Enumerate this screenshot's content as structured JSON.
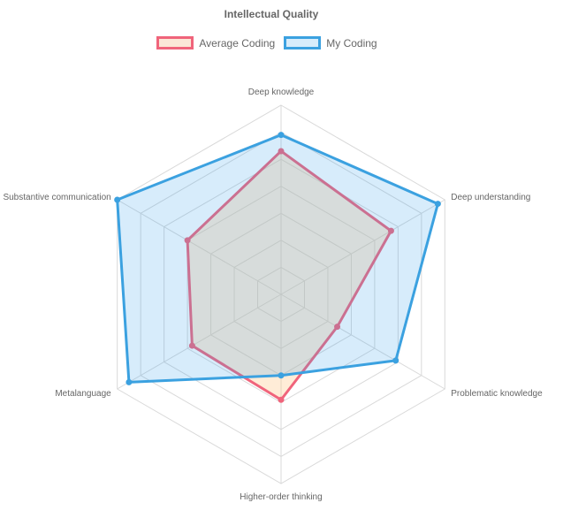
{
  "chart_data": {
    "type": "radar",
    "title": "Intellectual Quality",
    "categories": [
      "Deep knowledge",
      "Deep understanding",
      "Problematic knowledge",
      "Higher-order thinking",
      "Metalanguage",
      "Substantive communication"
    ],
    "rlim": [
      0,
      7
    ],
    "grid": true,
    "legend_position": "top",
    "series": [
      {
        "name": "Average Coding",
        "values": [
          5.3,
          4.7,
          2.4,
          3.9,
          3.8,
          4.0
        ],
        "stroke": "#f0647b",
        "fill": "rgba(255, 200, 140, 0.35)"
      },
      {
        "name": "My Coding",
        "values": [
          5.9,
          6.7,
          4.9,
          3.0,
          6.5,
          7.0
        ],
        "stroke": "#3ba1e0",
        "fill": "rgba(54, 162, 235, 0.2)"
      }
    ]
  }
}
